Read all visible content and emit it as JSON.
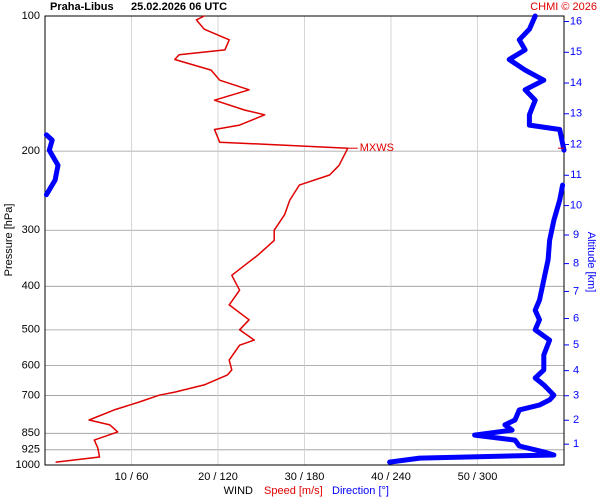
{
  "chart_data": {
    "type": "line",
    "title": "Praha-Libus",
    "subtitle": "25.02.2026 06 UTC",
    "credit": "CHMI © 2026",
    "y_label": "Pressure [hPa]",
    "y2_label": "Altitude [km]",
    "x_label": "WIND",
    "annotation": "MXWS",
    "log_y": true,
    "grid": true,
    "ylim": [
      1000,
      100
    ],
    "yticks": [
      100,
      200,
      300,
      400,
      500,
      600,
      700,
      850,
      925,
      1000
    ],
    "xlim": [
      0,
      60
    ],
    "xticks": [
      {
        "value": 10,
        "label": "10 / 60"
      },
      {
        "value": 20,
        "label": "20 / 120"
      },
      {
        "value": 30,
        "label": "30 / 180"
      },
      {
        "value": 40,
        "label": "40 / 240"
      },
      {
        "value": 50,
        "label": "50 / 300"
      }
    ],
    "y2ticks": [
      1,
      2,
      3,
      4,
      5,
      6,
      7,
      8,
      9,
      10,
      11,
      12,
      13,
      14,
      15,
      16
    ],
    "series": [
      {
        "name": "Speed [m/s]",
        "color": "#e00000",
        "xlim": [
          0,
          60
        ],
        "pressure": [
          985,
          960,
          916,
          880,
          844,
          814,
          794,
          754,
          724,
          699,
          688,
          663,
          630,
          614,
          584,
          541,
          527,
          500,
          475,
          440,
          408,
          378,
          359,
          341,
          316,
          300,
          277,
          257,
          238,
          226,
          215,
          197,
          191,
          179,
          175,
          166,
          162,
          154,
          146,
          139,
          132,
          125,
          122,
          119,
          113,
          107,
          102,
          100
        ],
        "values": [
          1.3,
          6.3,
          6.1,
          5.7,
          8.4,
          7.5,
          5.1,
          8.0,
          10.9,
          13.2,
          15.0,
          18.4,
          21.1,
          21.6,
          21.3,
          22.5,
          24.2,
          22.5,
          23.6,
          21.3,
          22.5,
          21.6,
          23.1,
          24.6,
          26.5,
          26.5,
          27.7,
          28.3,
          29.4,
          32.9,
          34.0,
          35.0,
          20.2,
          19.6,
          22.5,
          25.4,
          23.1,
          19.6,
          23.6,
          20.2,
          19.2,
          15.0,
          15.5,
          20.8,
          21.3,
          18.4,
          17.5,
          18.4
        ]
      },
      {
        "name": "Direction [°]",
        "color": "#0000ff",
        "xlim": [
          0,
          360
        ],
        "pressure": [
          985,
          965,
          950,
          935,
          907,
          880,
          858,
          836,
          814,
          794,
          754,
          735,
          716,
          699,
          663,
          640,
          614,
          569,
          527,
          500,
          475,
          452,
          429,
          387,
          349,
          316,
          285,
          257,
          238,
          null,
          250,
          232,
          215,
          199,
          189,
          184,
          null,
          199,
          179,
          175,
          166,
          154,
          146,
          139,
          132,
          125,
          119,
          113,
          107,
          100
        ],
        "values": [
          239,
          260,
          353,
          346,
          329,
          326,
          298,
          324,
          319,
          326,
          329,
          343,
          350,
          353,
          346,
          340,
          346,
          346,
          350,
          340,
          343,
          340,
          343,
          346,
          349,
          350,
          353,
          357,
          359,
          null,
          1,
          7,
          9,
          3,
          5,
          1,
          null,
          360,
          357,
          336,
          336,
          340,
          333,
          346,
          333,
          322,
          333,
          329,
          336,
          340
        ]
      }
    ]
  }
}
